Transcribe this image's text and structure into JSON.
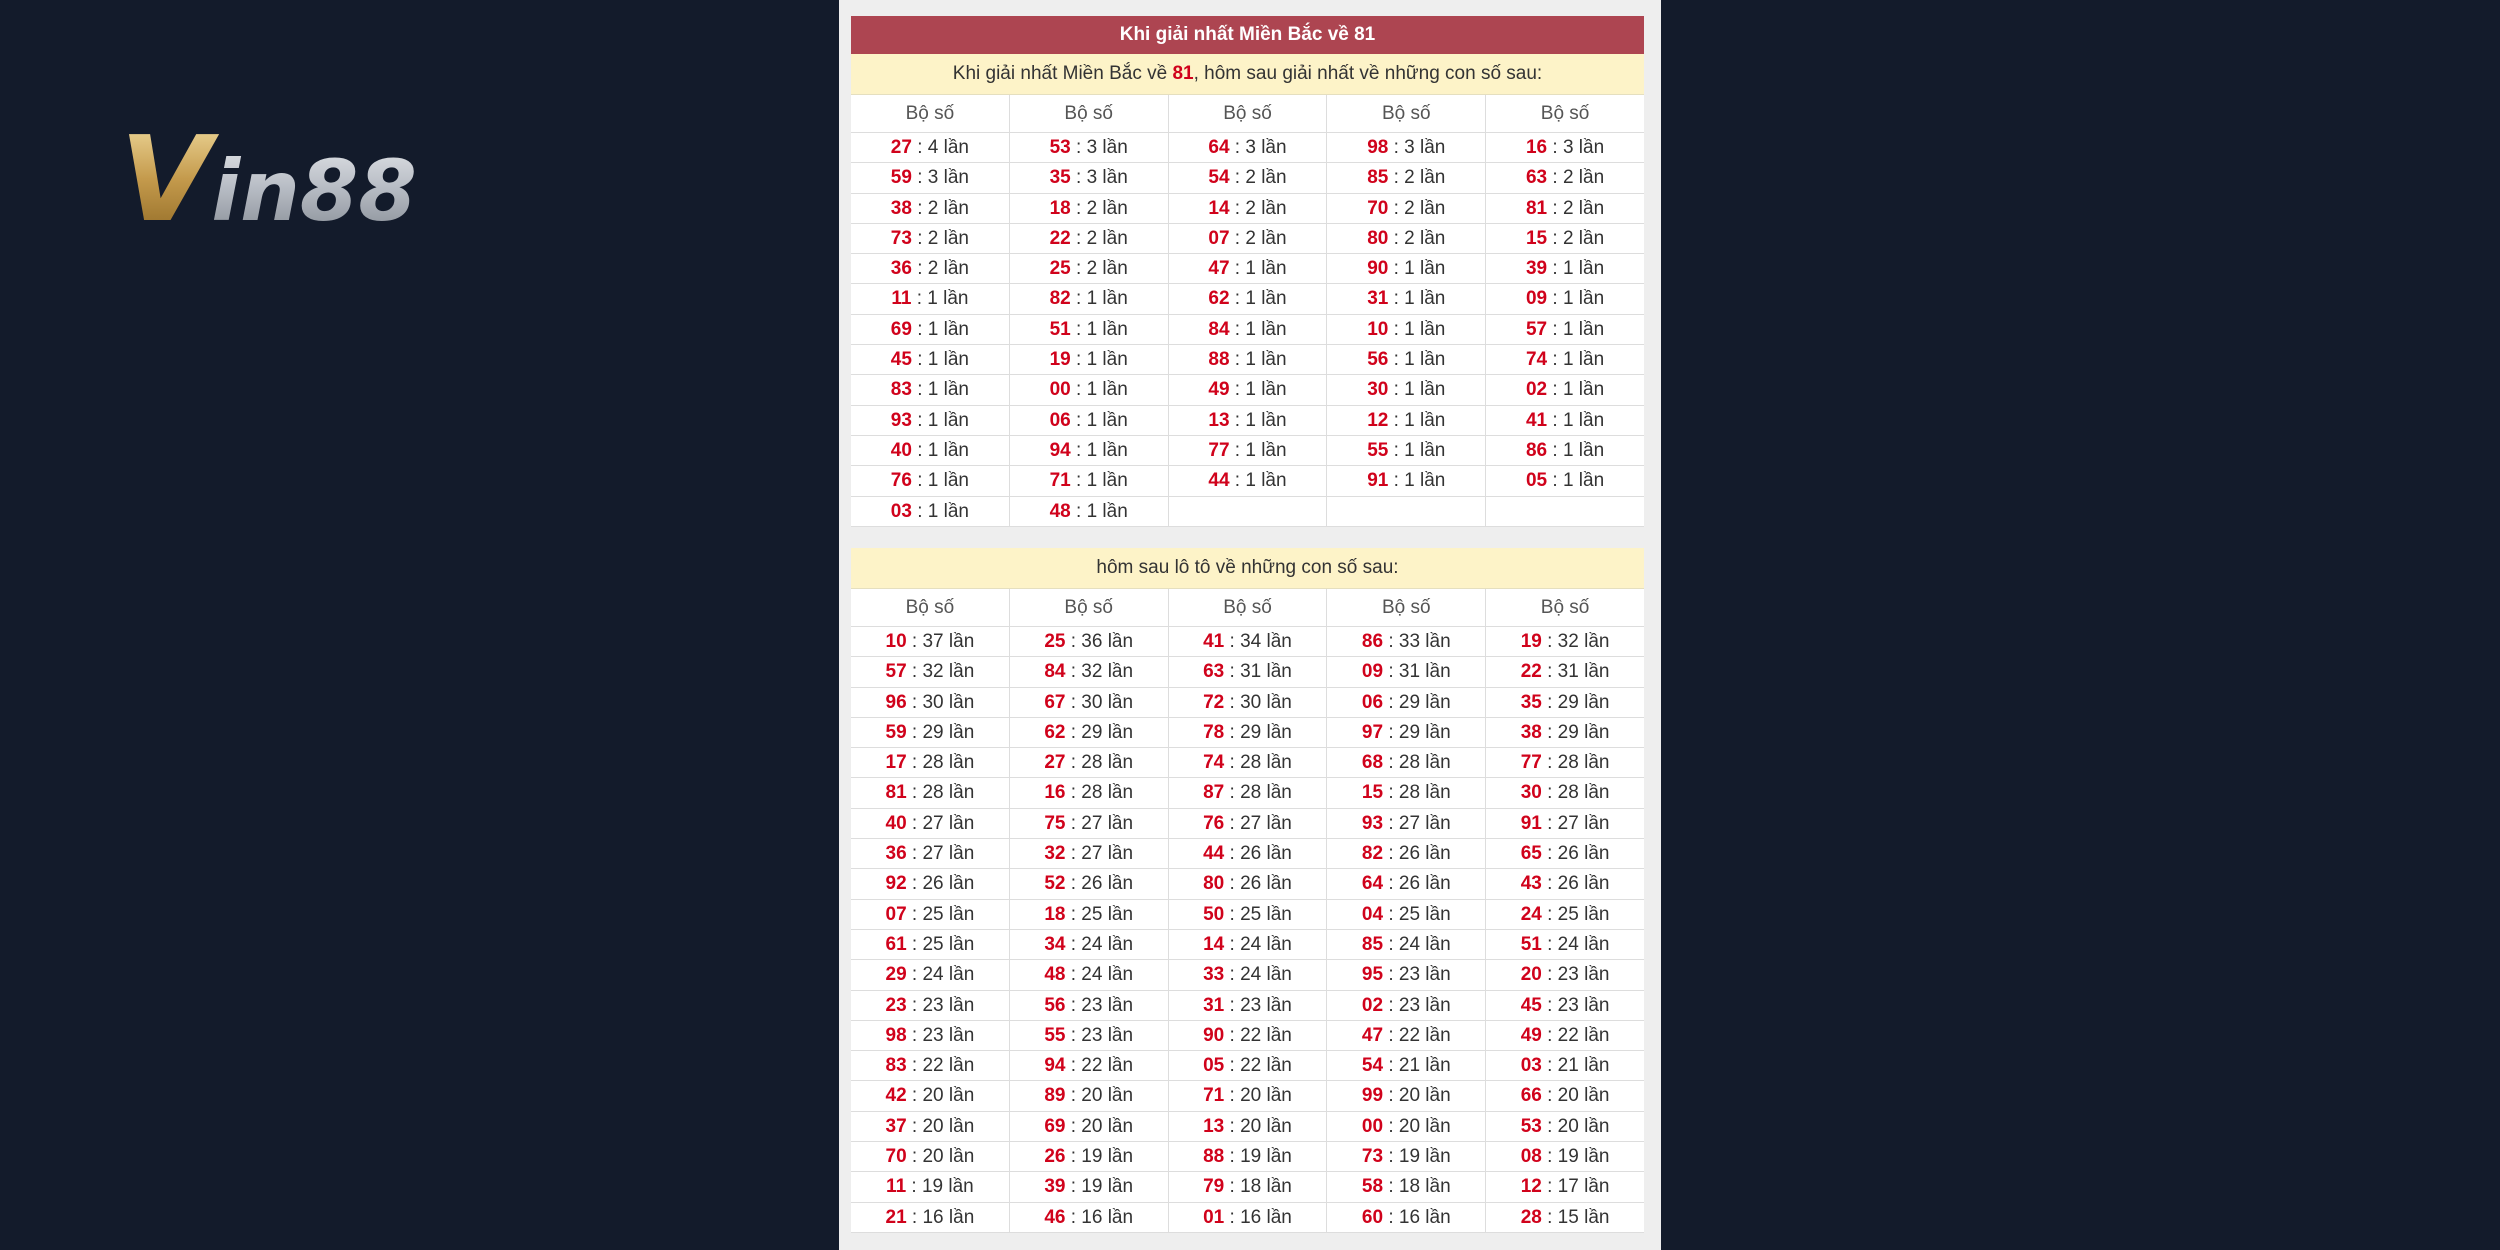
{
  "logo": {
    "first": "V",
    "rest": "in88"
  },
  "sections": [
    {
      "title": "Khi giải nhất Miền Bắc về 81",
      "subtitle": {
        "before": "Khi giải nhất Miền Bắc về ",
        "highlight": "81",
        "after": ", hôm sau giải nhất về những con số sau:"
      },
      "headers": [
        "Bộ số",
        "Bộ số",
        "Bộ số",
        "Bộ số",
        "Bộ số"
      ],
      "rows": [
        [
          {
            "num": "27",
            "rest": " : 4 lần"
          },
          {
            "num": "53",
            "rest": " : 3 lần"
          },
          {
            "num": "64",
            "rest": " : 3 lần"
          },
          {
            "num": "98",
            "rest": " : 3 lần"
          },
          {
            "num": "16",
            "rest": " : 3 lần"
          }
        ],
        [
          {
            "num": "59",
            "rest": " : 3 lần"
          },
          {
            "num": "35",
            "rest": " : 3 lần"
          },
          {
            "num": "54",
            "rest": " : 2 lần"
          },
          {
            "num": "85",
            "rest": " : 2 lần"
          },
          {
            "num": "63",
            "rest": " : 2 lần"
          }
        ],
        [
          {
            "num": "38",
            "rest": " : 2 lần"
          },
          {
            "num": "18",
            "rest": " : 2 lần"
          },
          {
            "num": "14",
            "rest": " : 2 lần"
          },
          {
            "num": "70",
            "rest": " : 2 lần"
          },
          {
            "num": "81",
            "rest": " : 2 lần"
          }
        ],
        [
          {
            "num": "73",
            "rest": " : 2 lần"
          },
          {
            "num": "22",
            "rest": " : 2 lần"
          },
          {
            "num": "07",
            "rest": " : 2 lần"
          },
          {
            "num": "80",
            "rest": " : 2 lần"
          },
          {
            "num": "15",
            "rest": " : 2 lần"
          }
        ],
        [
          {
            "num": "36",
            "rest": " : 2 lần"
          },
          {
            "num": "25",
            "rest": " : 2 lần"
          },
          {
            "num": "47",
            "rest": " : 1 lần"
          },
          {
            "num": "90",
            "rest": " : 1 lần"
          },
          {
            "num": "39",
            "rest": " : 1 lần"
          }
        ],
        [
          {
            "num": "11",
            "rest": " : 1 lần"
          },
          {
            "num": "82",
            "rest": " : 1 lần"
          },
          {
            "num": "62",
            "rest": " : 1 lần"
          },
          {
            "num": "31",
            "rest": " : 1 lần"
          },
          {
            "num": "09",
            "rest": " : 1 lần"
          }
        ],
        [
          {
            "num": "69",
            "rest": " : 1 lần"
          },
          {
            "num": "51",
            "rest": " : 1 lần"
          },
          {
            "num": "84",
            "rest": " : 1 lần"
          },
          {
            "num": "10",
            "rest": " : 1 lần"
          },
          {
            "num": "57",
            "rest": " : 1 lần"
          }
        ],
        [
          {
            "num": "45",
            "rest": " : 1 lần"
          },
          {
            "num": "19",
            "rest": " : 1 lần"
          },
          {
            "num": "88",
            "rest": " : 1 lần"
          },
          {
            "num": "56",
            "rest": " : 1 lần"
          },
          {
            "num": "74",
            "rest": " : 1 lần"
          }
        ],
        [
          {
            "num": "83",
            "rest": " : 1 lần"
          },
          {
            "num": "00",
            "rest": " : 1 lần"
          },
          {
            "num": "49",
            "rest": " : 1 lần"
          },
          {
            "num": "30",
            "rest": " : 1 lần"
          },
          {
            "num": "02",
            "rest": " : 1 lần"
          }
        ],
        [
          {
            "num": "93",
            "rest": " : 1 lần"
          },
          {
            "num": "06",
            "rest": " : 1 lần"
          },
          {
            "num": "13",
            "rest": " : 1 lần"
          },
          {
            "num": "12",
            "rest": " : 1 lần"
          },
          {
            "num": "41",
            "rest": " : 1 lần"
          }
        ],
        [
          {
            "num": "40",
            "rest": " : 1 lần"
          },
          {
            "num": "94",
            "rest": " : 1 lần"
          },
          {
            "num": "77",
            "rest": " : 1 lần"
          },
          {
            "num": "55",
            "rest": " : 1 lần"
          },
          {
            "num": "86",
            "rest": " : 1 lần"
          }
        ],
        [
          {
            "num": "76",
            "rest": " : 1 lần"
          },
          {
            "num": "71",
            "rest": " : 1 lần"
          },
          {
            "num": "44",
            "rest": " : 1 lần"
          },
          {
            "num": "91",
            "rest": " : 1 lần"
          },
          {
            "num": "05",
            "rest": " : 1 lần"
          }
        ],
        [
          {
            "num": "03",
            "rest": " : 1 lần"
          },
          {
            "num": "48",
            "rest": " : 1 lần"
          }
        ]
      ]
    },
    {
      "subtitle": {
        "text": "hôm sau lô tô về những con số sau:"
      },
      "headers": [
        "Bộ số",
        "Bộ số",
        "Bộ số",
        "Bộ số",
        "Bộ số"
      ],
      "rows": [
        [
          {
            "num": "10",
            "rest": " : 37 lần"
          },
          {
            "num": "25",
            "rest": " : 36 lần"
          },
          {
            "num": "41",
            "rest": " : 34 lần"
          },
          {
            "num": "86",
            "rest": " : 33 lần"
          },
          {
            "num": "19",
            "rest": " : 32 lần"
          }
        ],
        [
          {
            "num": "57",
            "rest": " : 32 lần"
          },
          {
            "num": "84",
            "rest": " : 32 lần"
          },
          {
            "num": "63",
            "rest": " : 31 lần"
          },
          {
            "num": "09",
            "rest": " : 31 lần"
          },
          {
            "num": "22",
            "rest": " : 31 lần"
          }
        ],
        [
          {
            "num": "96",
            "rest": " : 30 lần"
          },
          {
            "num": "67",
            "rest": " : 30 lần"
          },
          {
            "num": "72",
            "rest": " : 30 lần"
          },
          {
            "num": "06",
            "rest": " : 29 lần"
          },
          {
            "num": "35",
            "rest": " : 29 lần"
          }
        ],
        [
          {
            "num": "59",
            "rest": " : 29 lần"
          },
          {
            "num": "62",
            "rest": " : 29 lần"
          },
          {
            "num": "78",
            "rest": " : 29 lần"
          },
          {
            "num": "97",
            "rest": " : 29 lần"
          },
          {
            "num": "38",
            "rest": " : 29 lần"
          }
        ],
        [
          {
            "num": "17",
            "rest": " : 28 lần"
          },
          {
            "num": "27",
            "rest": " : 28 lần"
          },
          {
            "num": "74",
            "rest": " : 28 lần"
          },
          {
            "num": "68",
            "rest": " : 28 lần"
          },
          {
            "num": "77",
            "rest": " : 28 lần"
          }
        ],
        [
          {
            "num": "81",
            "rest": " : 28 lần"
          },
          {
            "num": "16",
            "rest": " : 28 lần"
          },
          {
            "num": "87",
            "rest": " : 28 lần"
          },
          {
            "num": "15",
            "rest": " : 28 lần"
          },
          {
            "num": "30",
            "rest": " : 28 lần"
          }
        ],
        [
          {
            "num": "40",
            "rest": " : 27 lần"
          },
          {
            "num": "75",
            "rest": " : 27 lần"
          },
          {
            "num": "76",
            "rest": " : 27 lần"
          },
          {
            "num": "93",
            "rest": " : 27 lần"
          },
          {
            "num": "91",
            "rest": " : 27 lần"
          }
        ],
        [
          {
            "num": "36",
            "rest": " : 27 lần"
          },
          {
            "num": "32",
            "rest": " : 27 lần"
          },
          {
            "num": "44",
            "rest": " : 26 lần"
          },
          {
            "num": "82",
            "rest": " : 26 lần"
          },
          {
            "num": "65",
            "rest": " : 26 lần"
          }
        ],
        [
          {
            "num": "92",
            "rest": " : 26 lần"
          },
          {
            "num": "52",
            "rest": " : 26 lần"
          },
          {
            "num": "80",
            "rest": " : 26 lần"
          },
          {
            "num": "64",
            "rest": " : 26 lần"
          },
          {
            "num": "43",
            "rest": " : 26 lần"
          }
        ],
        [
          {
            "num": "07",
            "rest": " : 25 lần"
          },
          {
            "num": "18",
            "rest": " : 25 lần"
          },
          {
            "num": "50",
            "rest": " : 25 lần"
          },
          {
            "num": "04",
            "rest": " : 25 lần"
          },
          {
            "num": "24",
            "rest": " : 25 lần"
          }
        ],
        [
          {
            "num": "61",
            "rest": " : 25 lần"
          },
          {
            "num": "34",
            "rest": " : 24 lần"
          },
          {
            "num": "14",
            "rest": " : 24 lần"
          },
          {
            "num": "85",
            "rest": " : 24 lần"
          },
          {
            "num": "51",
            "rest": " : 24 lần"
          }
        ],
        [
          {
            "num": "29",
            "rest": " : 24 lần"
          },
          {
            "num": "48",
            "rest": " : 24 lần"
          },
          {
            "num": "33",
            "rest": " : 24 lần"
          },
          {
            "num": "95",
            "rest": " : 23 lần"
          },
          {
            "num": "20",
            "rest": " : 23 lần"
          }
        ],
        [
          {
            "num": "23",
            "rest": " : 23 lần"
          },
          {
            "num": "56",
            "rest": " : 23 lần"
          },
          {
            "num": "31",
            "rest": " : 23 lần"
          },
          {
            "num": "02",
            "rest": " : 23 lần"
          },
          {
            "num": "45",
            "rest": " : 23 lần"
          }
        ],
        [
          {
            "num": "98",
            "rest": " : 23 lần"
          },
          {
            "num": "55",
            "rest": " : 23 lần"
          },
          {
            "num": "90",
            "rest": " : 22 lần"
          },
          {
            "num": "47",
            "rest": " : 22 lần"
          },
          {
            "num": "49",
            "rest": " : 22 lần"
          }
        ],
        [
          {
            "num": "83",
            "rest": " : 22 lần"
          },
          {
            "num": "94",
            "rest": " : 22 lần"
          },
          {
            "num": "05",
            "rest": " : 22 lần"
          },
          {
            "num": "54",
            "rest": " : 21 lần"
          },
          {
            "num": "03",
            "rest": " : 21 lần"
          }
        ],
        [
          {
            "num": "42",
            "rest": " : 20 lần"
          },
          {
            "num": "89",
            "rest": " : 20 lần"
          },
          {
            "num": "71",
            "rest": " : 20 lần"
          },
          {
            "num": "99",
            "rest": " : 20 lần"
          },
          {
            "num": "66",
            "rest": " : 20 lần"
          }
        ],
        [
          {
            "num": "37",
            "rest": " : 20 lần"
          },
          {
            "num": "69",
            "rest": " : 20 lần"
          },
          {
            "num": "13",
            "rest": " : 20 lần"
          },
          {
            "num": "00",
            "rest": " : 20 lần"
          },
          {
            "num": "53",
            "rest": " : 20 lần"
          }
        ],
        [
          {
            "num": "70",
            "rest": " : 20 lần"
          },
          {
            "num": "26",
            "rest": " : 19 lần"
          },
          {
            "num": "88",
            "rest": " : 19 lần"
          },
          {
            "num": "73",
            "rest": " : 19 lần"
          },
          {
            "num": "08",
            "rest": " : 19 lần"
          }
        ],
        [
          {
            "num": "11",
            "rest": " : 19 lần"
          },
          {
            "num": "39",
            "rest": " : 19 lần"
          },
          {
            "num": "79",
            "rest": " : 18 lần"
          },
          {
            "num": "58",
            "rest": " : 18 lần"
          },
          {
            "num": "12",
            "rest": " : 17 lần"
          }
        ],
        [
          {
            "num": "21",
            "rest": " : 16 lần"
          },
          {
            "num": "46",
            "rest": " : 16 lần"
          },
          {
            "num": "01",
            "rest": " : 16 lần"
          },
          {
            "num": "60",
            "rest": " : 16 lần"
          },
          {
            "num": "28",
            "rest": " : 15 lần"
          }
        ]
      ]
    }
  ]
}
